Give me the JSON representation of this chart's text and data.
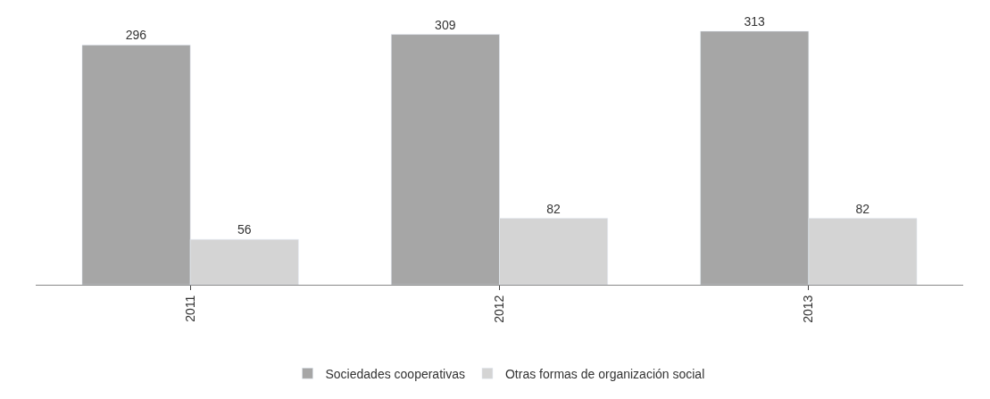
{
  "chart_data": {
    "type": "bar",
    "categories": [
      "2011",
      "2012",
      "2013"
    ],
    "series": [
      {
        "name": "Sociedades cooperativas",
        "color": "#a6a6a6",
        "values": [
          296,
          309,
          313
        ]
      },
      {
        "name": "Otras formas de organización social",
        "color": "#d4d4d4",
        "values": [
          56,
          82,
          82
        ]
      }
    ],
    "data_labels": true,
    "legend": "bottom",
    "tick_labels": "x",
    "grid": false
  }
}
